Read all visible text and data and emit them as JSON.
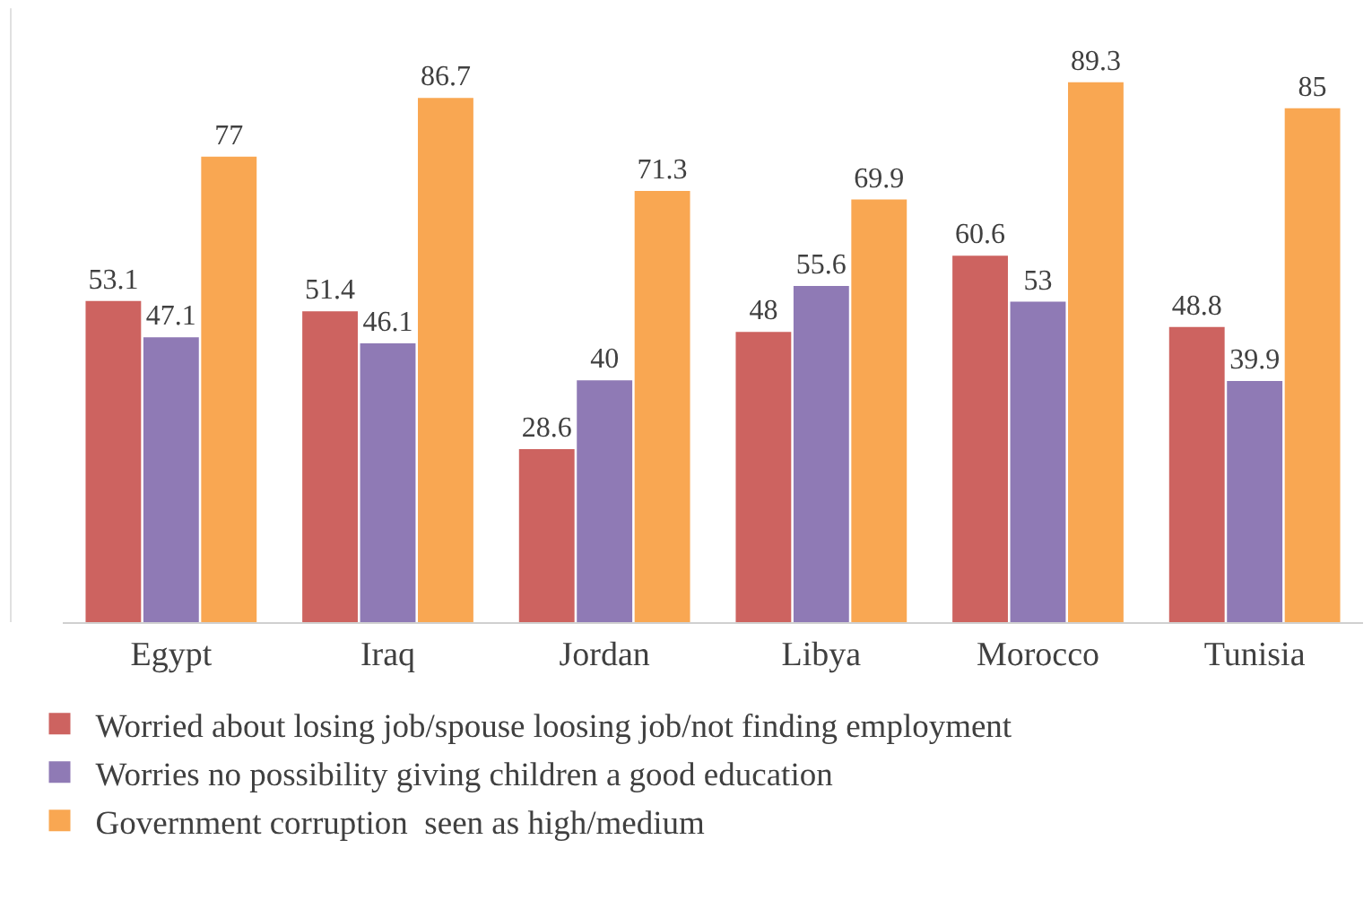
{
  "chart_data": {
    "type": "bar",
    "categories": [
      "Egypt",
      "Iraq",
      "Jordan",
      "Libya",
      "Morocco",
      "Tunisia"
    ],
    "series": [
      {
        "name": "Worried about losing job/spouse loosing job/not finding employment",
        "color": "#cd6360",
        "values": [
          53.1,
          51.4,
          28.6,
          48,
          60.6,
          48.8
        ]
      },
      {
        "name": "Worries no possibility giving children a good education",
        "color": "#8f7ab5",
        "values": [
          47.1,
          46.1,
          40,
          55.6,
          53,
          39.9
        ]
      },
      {
        "name": "Government corruption  seen as high/medium",
        "color": "#f9a752",
        "values": [
          77,
          86.7,
          71.3,
          69.9,
          89.3,
          85
        ]
      }
    ],
    "data_labels": true,
    "legend": "bottom",
    "grid": false
  }
}
